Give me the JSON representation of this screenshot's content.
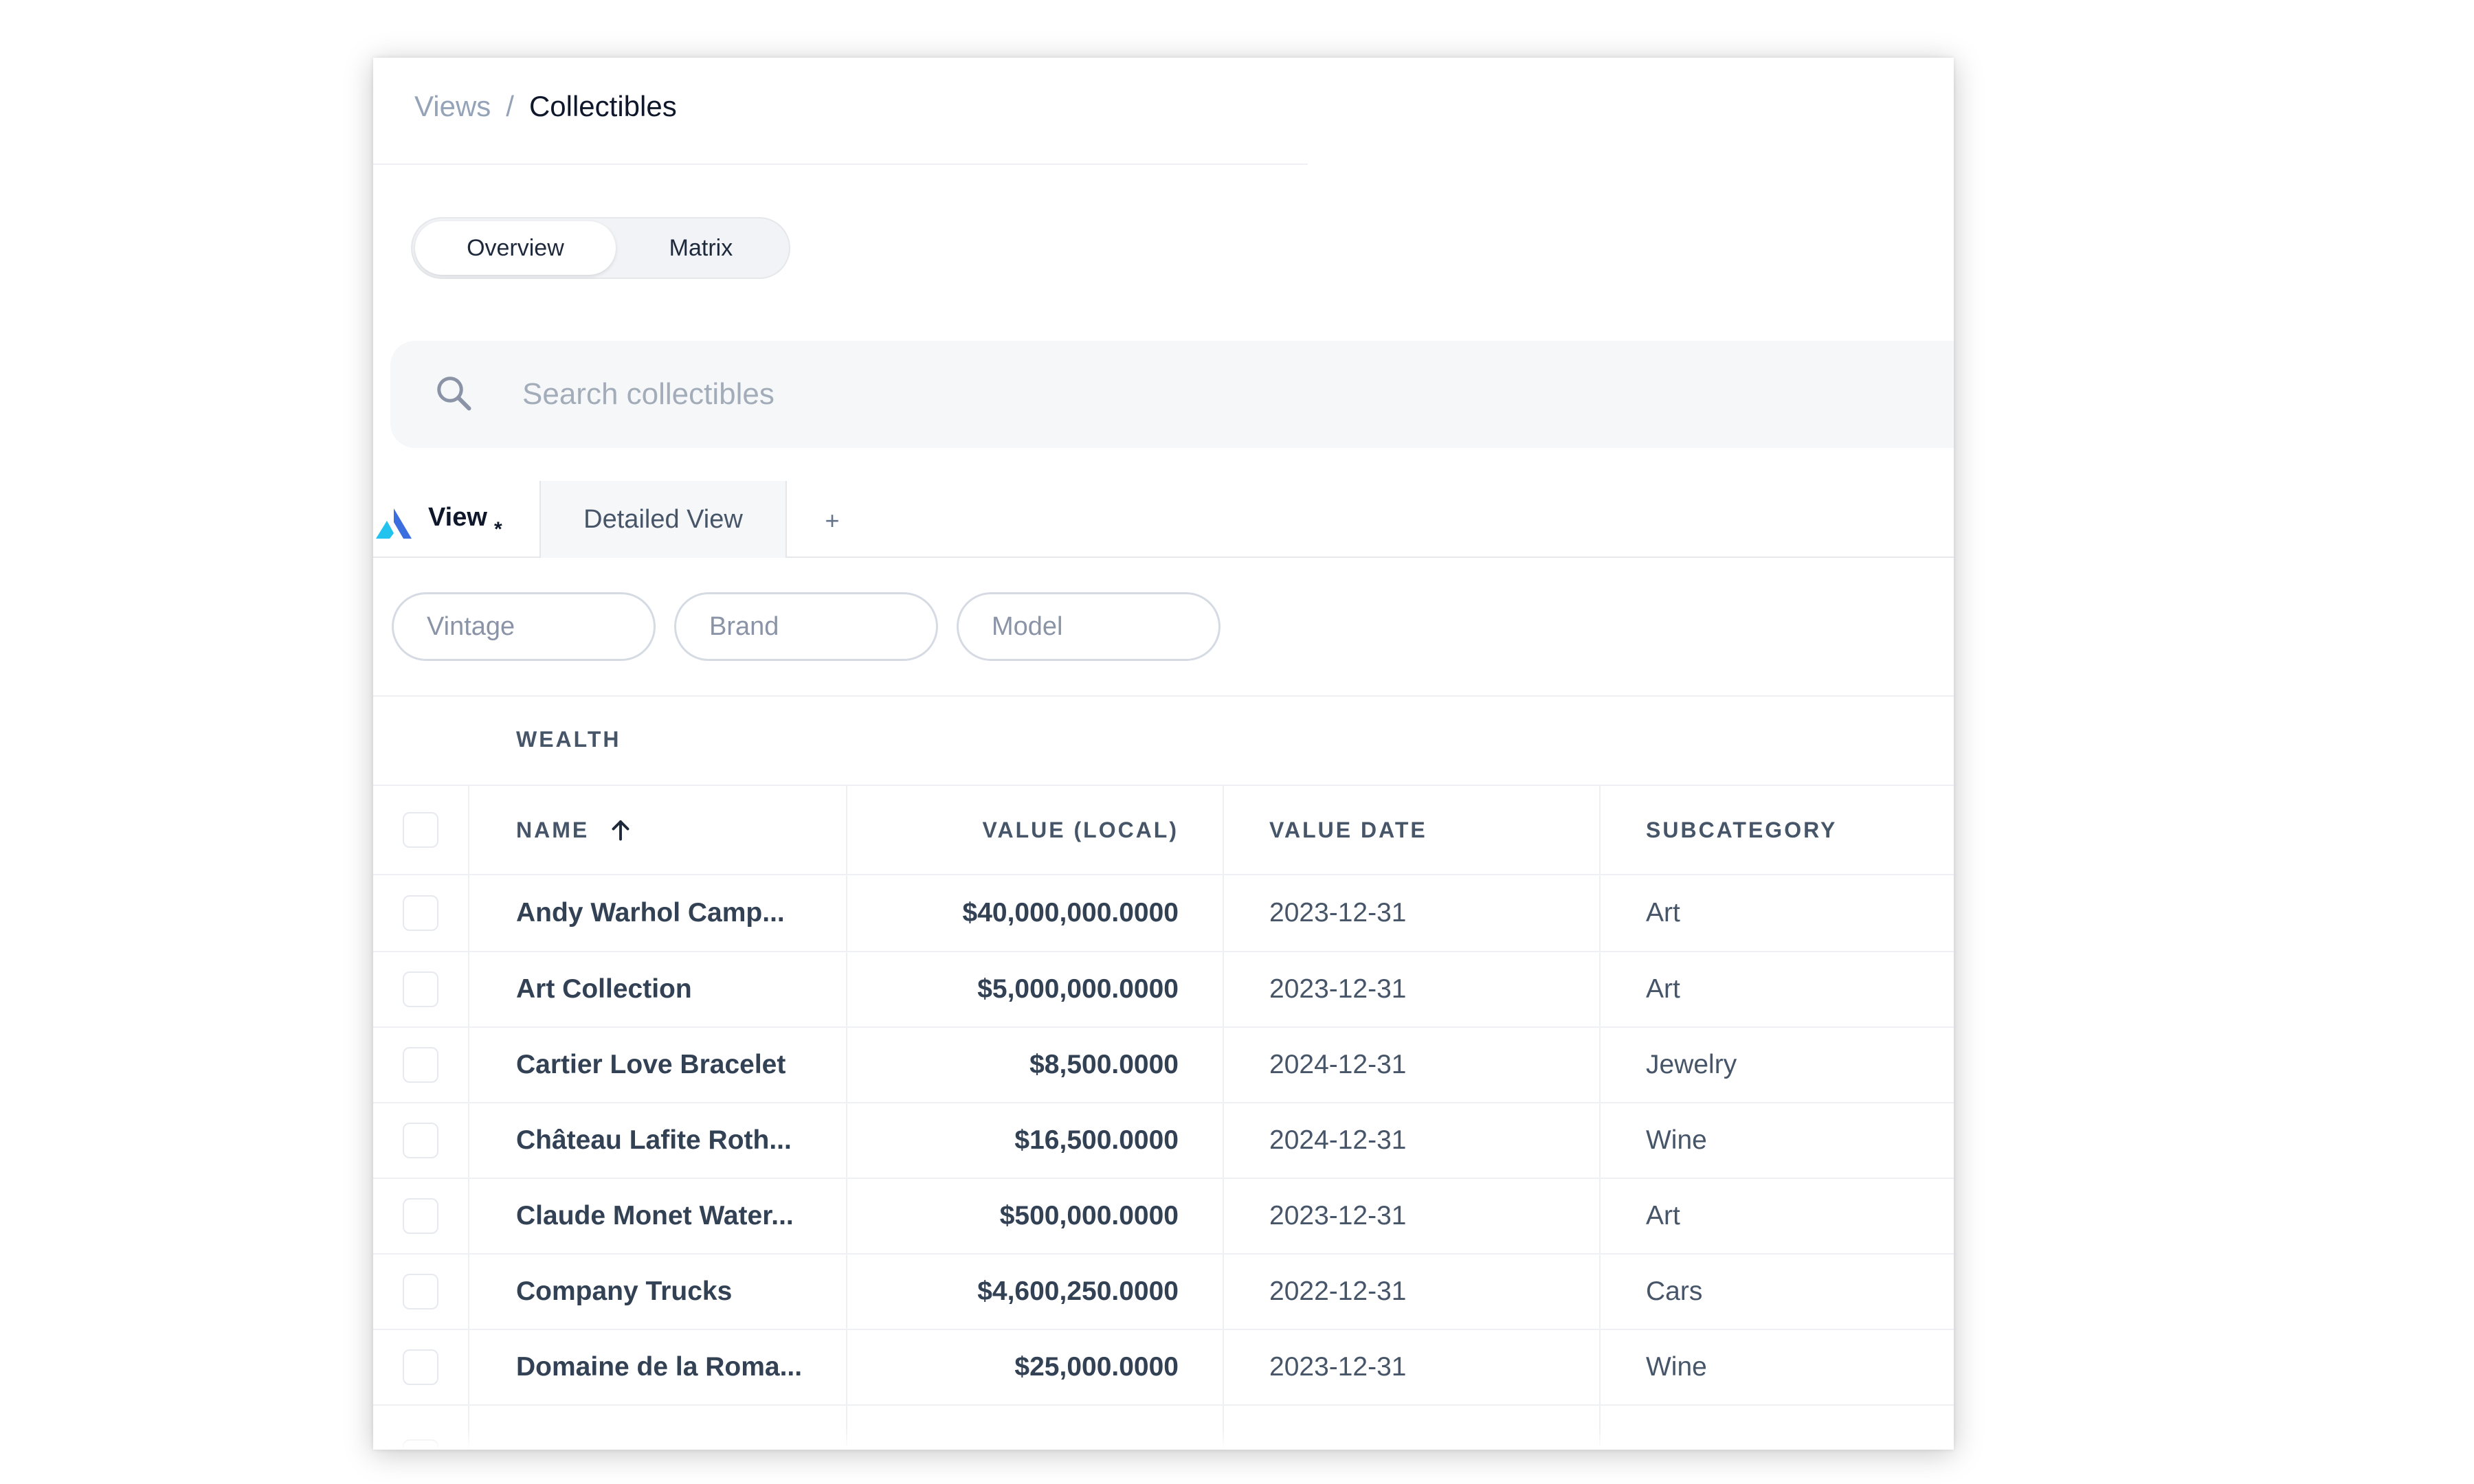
{
  "breadcrumb": {
    "root": "Views",
    "separator": "/",
    "current": "Collectibles"
  },
  "segmented": {
    "tabs": [
      "Overview",
      "Matrix"
    ],
    "active": "Overview"
  },
  "search": {
    "placeholder": "Search collectibles",
    "value": ""
  },
  "view_tabs": {
    "items": [
      {
        "label": "View",
        "marker": "*",
        "active": true
      },
      {
        "label": "Detailed View",
        "active": false
      }
    ],
    "add_label": "+"
  },
  "filters": [
    "Vintage",
    "Brand",
    "Model"
  ],
  "table": {
    "group": "WEALTH",
    "columns": {
      "name": "NAME",
      "value": "VALUE (LOCAL)",
      "date": "VALUE DATE",
      "subcategory": "SUBCATEGORY"
    },
    "sort": {
      "column": "name",
      "direction": "ascending"
    },
    "rows": [
      {
        "name": "Andy Warhol Camp...",
        "value": "$40,000,000.0000",
        "date": "2023-12-31",
        "subcategory": "Art"
      },
      {
        "name": "Art Collection",
        "value": "$5,000,000.0000",
        "date": "2023-12-31",
        "subcategory": "Art"
      },
      {
        "name": "Cartier Love Bracelet",
        "value": "$8,500.0000",
        "date": "2024-12-31",
        "subcategory": "Jewelry"
      },
      {
        "name": "Château Lafite Roth...",
        "value": "$16,500.0000",
        "date": "2024-12-31",
        "subcategory": "Wine"
      },
      {
        "name": "Claude Monet Water...",
        "value": "$500,000.0000",
        "date": "2023-12-31",
        "subcategory": "Art"
      },
      {
        "name": "Company Trucks",
        "value": "$4,600,250.0000",
        "date": "2022-12-31",
        "subcategory": "Cars"
      },
      {
        "name": "Domaine de la Roma...",
        "value": "$25,000.0000",
        "date": "2023-12-31",
        "subcategory": "Wine"
      }
    ]
  },
  "colors": {
    "accent_blue": "#3b6fe0",
    "accent_cyan": "#22c3ee",
    "text_dark": "#0f172a",
    "text_muted": "#94a3b8",
    "border": "#eef0f3"
  },
  "icons": {
    "search": "search-icon",
    "sort": "arrow-up-icon",
    "logo": "view-logo-icon"
  }
}
